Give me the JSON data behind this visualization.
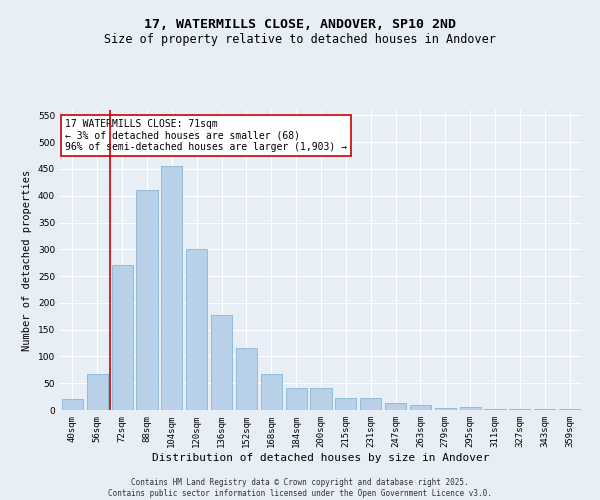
{
  "title": "17, WATERMILLS CLOSE, ANDOVER, SP10 2ND",
  "subtitle": "Size of property relative to detached houses in Andover",
  "xlabel": "Distribution of detached houses by size in Andover",
  "ylabel": "Number of detached properties",
  "categories": [
    "40sqm",
    "56sqm",
    "72sqm",
    "88sqm",
    "104sqm",
    "120sqm",
    "136sqm",
    "152sqm",
    "168sqm",
    "184sqm",
    "200sqm",
    "215sqm",
    "231sqm",
    "247sqm",
    "263sqm",
    "279sqm",
    "295sqm",
    "311sqm",
    "327sqm",
    "343sqm",
    "359sqm"
  ],
  "values": [
    20,
    68,
    270,
    410,
    455,
    300,
    178,
    115,
    68,
    42,
    42,
    22,
    22,
    14,
    10,
    4,
    5,
    2,
    1,
    1,
    1
  ],
  "bar_color": "#b8d0e8",
  "bar_edge_color": "#7aacd4",
  "background_color": "#e8eef5",
  "grid_color": "#ffffff",
  "annotation_text": "17 WATERMILLS CLOSE: 71sqm\n← 3% of detached houses are smaller (68)\n96% of semi-detached houses are larger (1,903) →",
  "annotation_box_color": "#ffffff",
  "annotation_box_edge": "#cc0000",
  "vline_color": "#cc0000",
  "ylim": [
    0,
    560
  ],
  "yticks": [
    0,
    50,
    100,
    150,
    200,
    250,
    300,
    350,
    400,
    450,
    500,
    550
  ],
  "footer": "Contains HM Land Registry data © Crown copyright and database right 2025.\nContains public sector information licensed under the Open Government Licence v3.0.",
  "title_fontsize": 9.5,
  "subtitle_fontsize": 8.5,
  "xlabel_fontsize": 8,
  "ylabel_fontsize": 7.5,
  "tick_fontsize": 6.5,
  "annotation_fontsize": 7,
  "footer_fontsize": 5.5
}
